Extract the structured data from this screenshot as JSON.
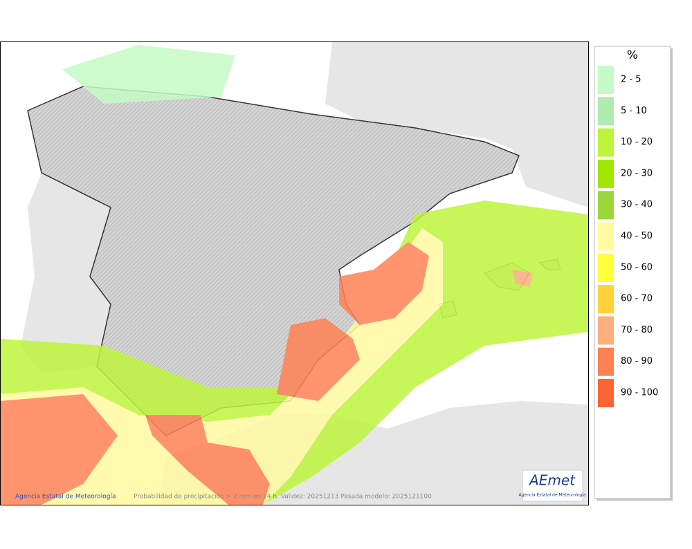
{
  "map": {
    "legend": {
      "title": "%",
      "items": [
        {
          "label": "2 - 5",
          "color": "#c6fac6"
        },
        {
          "label": "5 - 10",
          "color": "#b2ebb2"
        },
        {
          "label": "10 - 20",
          "color": "#bef53c"
        },
        {
          "label": "20 - 30",
          "color": "#a0e600"
        },
        {
          "label": "30 - 40",
          "color": "#9bd73c"
        },
        {
          "label": "40 - 50",
          "color": "#fffaa0"
        },
        {
          "label": "50 - 60",
          "color": "#ffff3c"
        },
        {
          "label": "60 - 70",
          "color": "#ffd23c"
        },
        {
          "label": "70 - 80",
          "color": "#ffaf7d"
        },
        {
          "label": "80 - 90",
          "color": "#ff8255"
        },
        {
          "label": "90 - 100",
          "color": "#ff6432"
        }
      ]
    },
    "footer": {
      "agency": "Agencia Estatal de Meteorología",
      "caption": "Probabilidad de precipitación > 2 mm en 24 h. Validez: 20251213 Pasada modelo: 2025121100"
    },
    "logo": {
      "name": "AEmet",
      "subtitle": "Agencia Estatal de Meteorología"
    }
  }
}
